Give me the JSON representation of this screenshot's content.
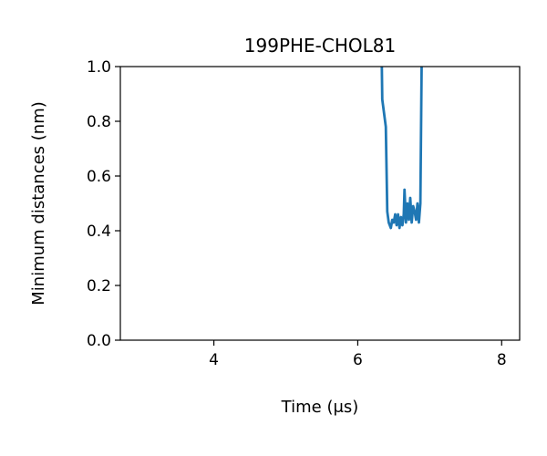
{
  "chart_data": {
    "type": "line",
    "title": "199PHE-CHOL81",
    "xlabel": "Time (μs)",
    "ylabel": "Minimum distances (nm)",
    "xlim": [
      2.7,
      8.25
    ],
    "ylim": [
      0.0,
      1.0
    ],
    "xticks": [
      4,
      6,
      8
    ],
    "xtick_labels": [
      "4",
      "6",
      "8"
    ],
    "yticks": [
      0.0,
      0.2,
      0.4,
      0.6,
      0.8,
      1.0
    ],
    "ytick_labels": [
      "0.0",
      "0.2",
      "0.4",
      "0.6",
      "0.8",
      "1.0"
    ],
    "grid": false,
    "series": [
      {
        "color": "#1f77b4",
        "x": [
          6.33,
          6.34,
          6.39,
          6.41,
          6.43,
          6.46,
          6.48,
          6.5,
          6.52,
          6.54,
          6.56,
          6.58,
          6.6,
          6.62,
          6.64,
          6.65,
          6.67,
          6.69,
          6.71,
          6.73,
          6.75,
          6.77,
          6.79,
          6.81,
          6.83,
          6.85,
          6.87,
          6.89
        ],
        "y": [
          1.08,
          0.88,
          0.78,
          0.47,
          0.43,
          0.41,
          0.44,
          0.43,
          0.46,
          0.42,
          0.46,
          0.41,
          0.45,
          0.42,
          0.46,
          0.55,
          0.43,
          0.5,
          0.44,
          0.52,
          0.43,
          0.49,
          0.47,
          0.44,
          0.5,
          0.43,
          0.5,
          1.08
        ]
      }
    ]
  }
}
